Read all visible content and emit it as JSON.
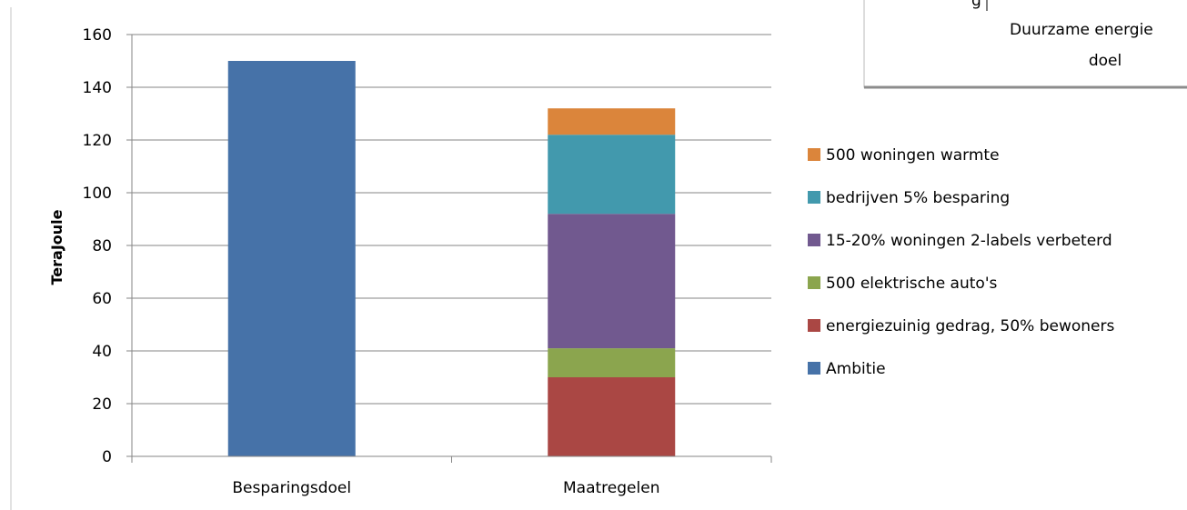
{
  "chart_data": {
    "type": "bar",
    "stacked": true,
    "categories": [
      "Besparingsdoel",
      "Maatregelen"
    ],
    "series": [
      {
        "name": "Ambitie",
        "color": "#4672a8",
        "values": [
          150,
          0
        ]
      },
      {
        "name": "energiezuinig gedrag, 50% bewoners",
        "color": "#aa4744",
        "values": [
          0,
          30
        ]
      },
      {
        "name": "500 elektrische auto's",
        "color": "#8ba54e",
        "values": [
          0,
          11
        ]
      },
      {
        "name": "15-20% woningen 2-labels verbeterd",
        "color": "#71598f",
        "values": [
          0,
          51
        ]
      },
      {
        "name": "bedrijven 5% besparing",
        "color": "#4299ad",
        "values": [
          0,
          30
        ]
      },
      {
        "name": "500 woningen warmte",
        "color": "#db853b",
        "values": [
          0,
          10
        ]
      }
    ],
    "ylabel": "TeraJoule",
    "xlabel": "",
    "ylim": [
      0,
      160
    ],
    "yticks": [
      0,
      20,
      40,
      60,
      80,
      100,
      120,
      140,
      160
    ],
    "grid": true,
    "legend_position": "right",
    "legend_order": [
      5,
      4,
      3,
      2,
      1,
      0
    ]
  },
  "overlay_box": {
    "text_line1": "Duurzame energie",
    "text_line2": "doel",
    "partial_text": "g"
  }
}
